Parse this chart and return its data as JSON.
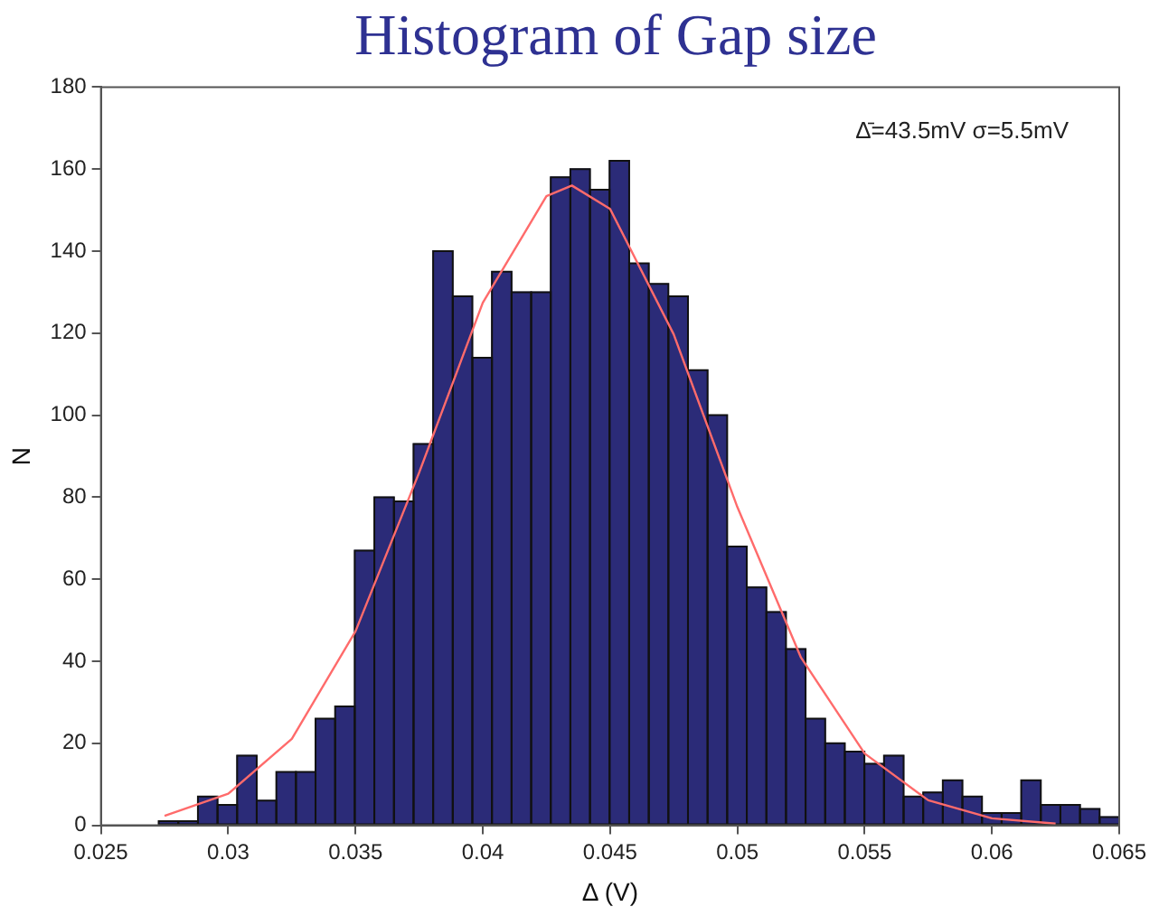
{
  "chart_data": {
    "type": "histogram",
    "title": "Histogram of Gap size",
    "xlabel": "Δ (V)",
    "ylabel": "N",
    "bins": [
      0.02727,
      0.02804,
      0.02881,
      0.02958,
      0.03035,
      0.03112,
      0.03189,
      0.03266,
      0.03343,
      0.0342,
      0.03497,
      0.03574,
      0.03651,
      0.03728,
      0.03805,
      0.03882,
      0.03959,
      0.04036,
      0.04113,
      0.0419,
      0.04267,
      0.04344,
      0.04421,
      0.04498,
      0.04575,
      0.04652,
      0.04729,
      0.04806,
      0.04883,
      0.0496,
      0.05037,
      0.05114,
      0.05191,
      0.05268,
      0.05345,
      0.05422,
      0.05499,
      0.05576,
      0.05653,
      0.0573,
      0.05807,
      0.05884,
      0.05961,
      0.06038,
      0.06115,
      0.06192,
      0.06269,
      0.06346,
      0.06423,
      0.065
    ],
    "values": [
      1,
      1,
      7,
      5,
      17,
      6,
      13,
      13,
      26,
      29,
      67,
      80,
      79,
      93,
      140,
      129,
      114,
      135,
      130,
      130,
      158,
      160,
      155,
      162,
      137,
      132,
      129,
      111,
      100,
      68,
      58,
      52,
      43,
      26,
      20,
      18,
      15,
      17,
      7,
      8,
      11,
      7,
      3,
      3,
      11,
      5,
      5,
      4,
      2
    ],
    "color": "#2b2b78",
    "series": [
      {
        "type": "line",
        "color": "#ff6b6b",
        "x": [
          0.0275,
          0.03,
          0.0325,
          0.035,
          0.0375,
          0.04,
          0.0425,
          0.0435,
          0.045,
          0.0475,
          0.05,
          0.0525,
          0.055,
          0.0575,
          0.06,
          0.0625
        ],
        "values": [
          2.3,
          7.7,
          21.1,
          47.3,
          86,
          127.4,
          153.4,
          156,
          150.3,
          119.7,
          77.6,
          40.9,
          17.5,
          6.1,
          1.7,
          0.4
        ]
      }
    ],
    "annotations": [
      "Δ̄=43.5mV σ=5.5mV"
    ],
    "xlim": [
      0.025,
      0.065
    ],
    "xticks": [
      0.025,
      0.03,
      0.035,
      0.04,
      0.045,
      0.05,
      0.055,
      0.06,
      0.065
    ],
    "ylim": [
      0,
      180
    ],
    "yticks": [
      0,
      20,
      40,
      60,
      80,
      100,
      120,
      140,
      160,
      180
    ],
    "grid": false,
    "legend": false
  }
}
